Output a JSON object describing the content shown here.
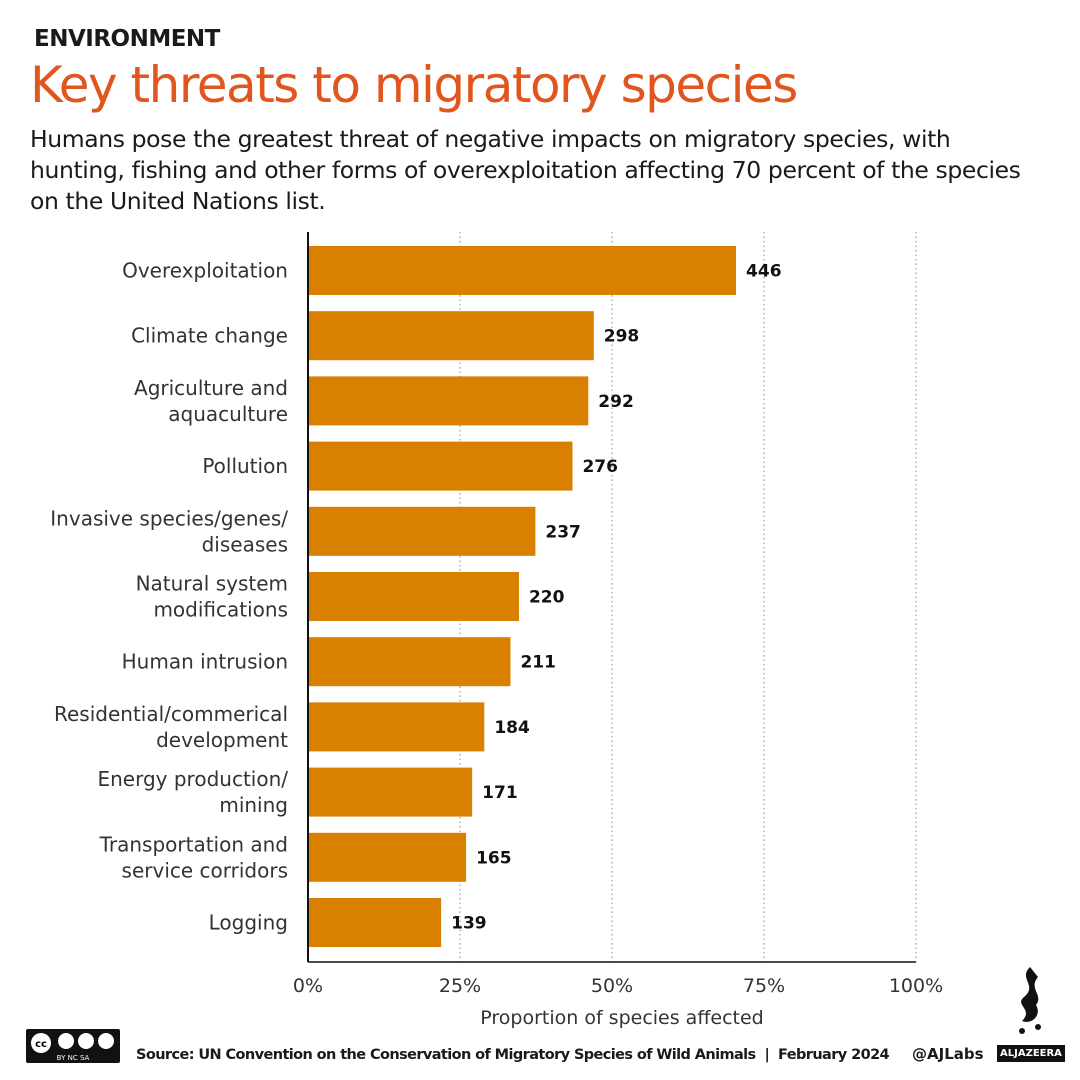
{
  "kicker": "ENVIRONMENT",
  "title": "Key threats to migratory species",
  "subtitle": "Humans pose the greatest threat of negative impacts on migratory species, with hunting, fishing and other forms of overexploitation affecting 70 percent of the species on the United Nations list.",
  "footer": {
    "source": "Source: UN Convention on the Conservation of Migratory Species of Wild Animals  |  February 2024",
    "handle": "@AJLabs",
    "brand": "ALJAZEERA",
    "license": "cc BY NC SA"
  },
  "colors": {
    "bar": "#d98000",
    "title": "#e1561f"
  },
  "chart_data": {
    "type": "bar",
    "orientation": "horizontal",
    "categories": [
      [
        "Overexploitation"
      ],
      [
        "Climate change"
      ],
      [
        "Agriculture and",
        "aquaculture"
      ],
      [
        "Pollution"
      ],
      [
        "Invasive species/genes/",
        "diseases"
      ],
      [
        "Natural system",
        "modifications"
      ],
      [
        "Human intrusion"
      ],
      [
        "Residential/commerical",
        "development"
      ],
      [
        "Energy production/",
        "mining"
      ],
      [
        "Transportation and",
        "service corridors"
      ],
      [
        "Logging"
      ]
    ],
    "labels": [
      446,
      298,
      292,
      276,
      237,
      220,
      211,
      184,
      171,
      165,
      139
    ],
    "values": [
      70.4,
      47.0,
      46.1,
      43.5,
      37.4,
      34.7,
      33.3,
      29.0,
      27.0,
      26.0,
      21.9
    ],
    "xlabel": "Proportion of species affected",
    "xlim": [
      0,
      100
    ],
    "xticks": [
      "0%",
      "25%",
      "50%",
      "75%",
      "100%"
    ],
    "grid": "vertical dotted"
  }
}
